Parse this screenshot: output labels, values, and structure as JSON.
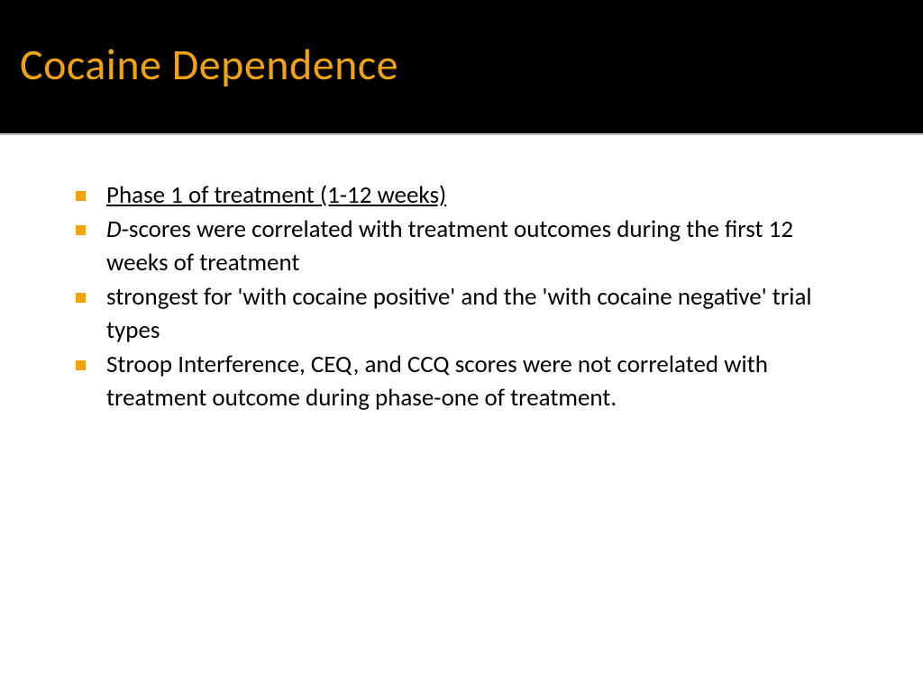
{
  "slide": {
    "title": "Cocaine Dependence",
    "title_color": "#f0a30a",
    "header_bg": "#000000",
    "body_bg": "#ffffff",
    "bullet_color": "#f0a30a",
    "text_color": "#000000",
    "title_fontsize": 48,
    "body_fontsize": 27,
    "bullets": [
      {
        "segments": [
          {
            "text": "Phase 1  of treatment (1-12 weeks)",
            "underline": true,
            "italic": false
          }
        ]
      },
      {
        "segments": [
          {
            "text": "D",
            "underline": false,
            "italic": true
          },
          {
            "text": "-scores were correlated with treatment outcomes during the first 12 weeks of treatment",
            "underline": false,
            "italic": false
          }
        ]
      },
      {
        "segments": [
          {
            "text": "strongest for 'with cocaine positive' and the 'with cocaine negative' trial types",
            "underline": false,
            "italic": false
          }
        ]
      },
      {
        "segments": [
          {
            "text": "Stroop Interference, CEQ, and CCQ scores were not correlated with treatment outcome during phase-one of treatment.",
            "underline": false,
            "italic": false
          }
        ]
      }
    ]
  }
}
